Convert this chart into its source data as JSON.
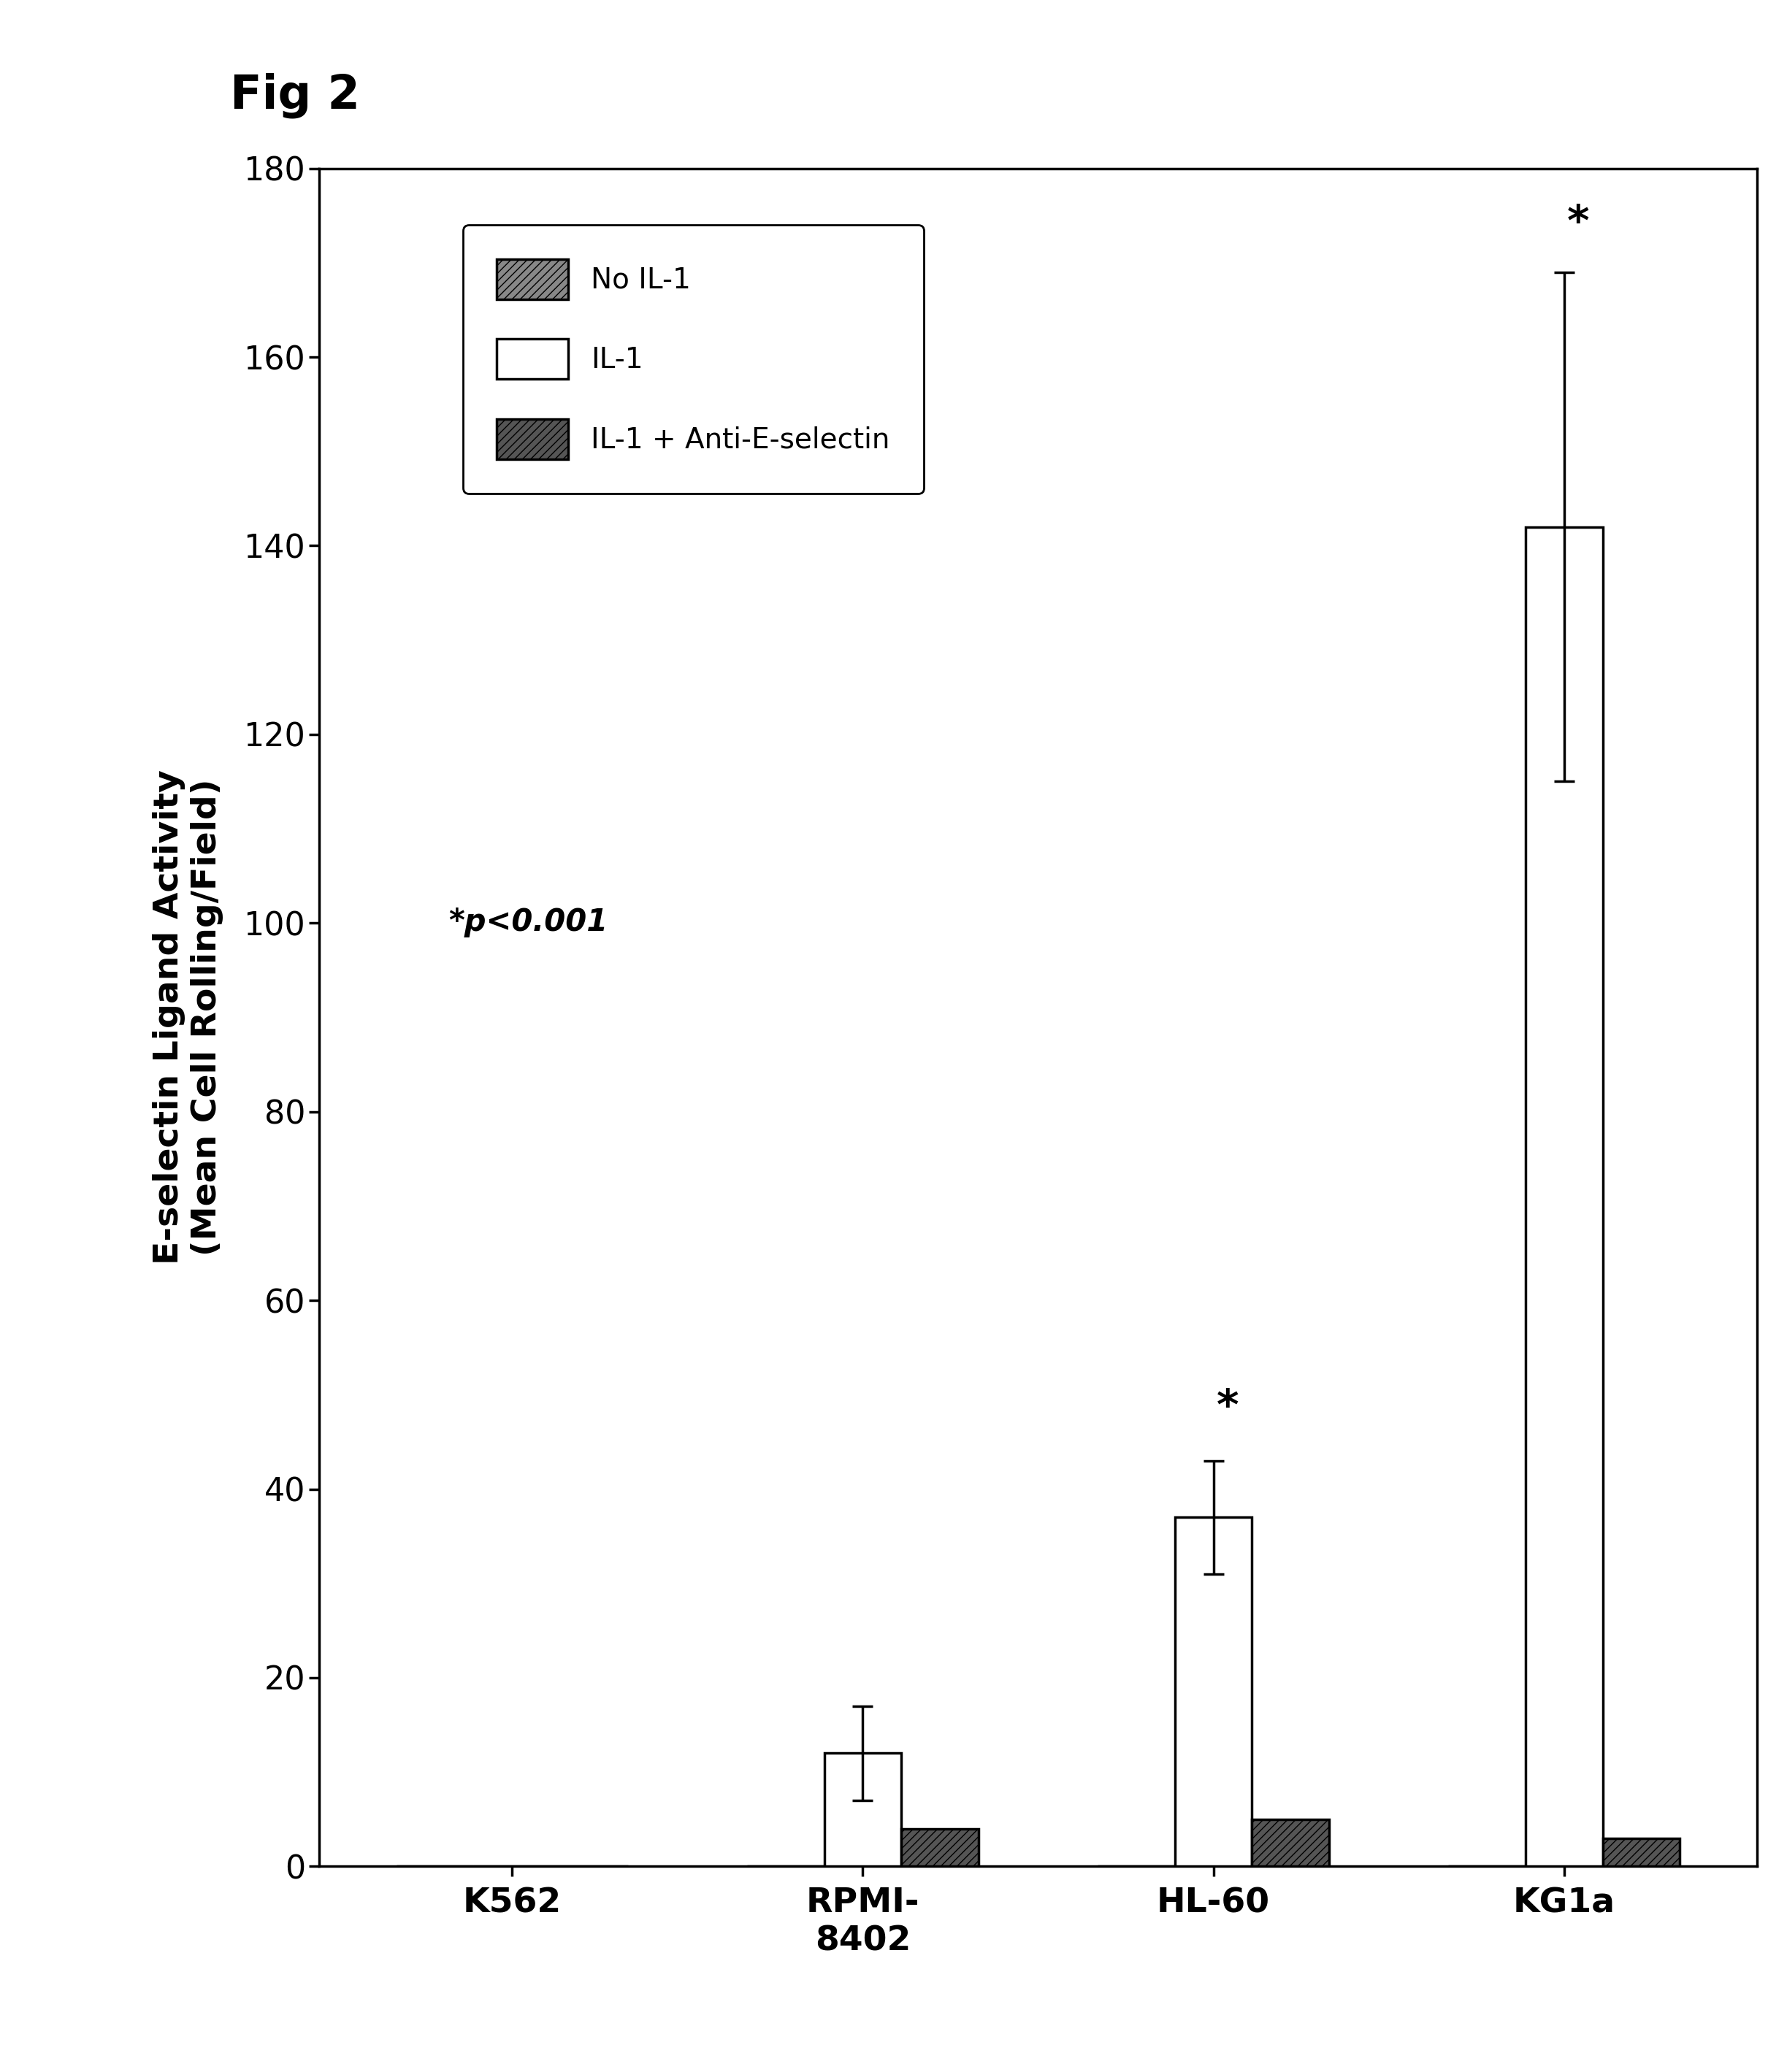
{
  "title": "Fig 2",
  "ylabel_line1": "E-selectin Ligand Activity",
  "ylabel_line2": "(Mean Cell Rolling/Field)",
  "categories": [
    "K562",
    "RPMI-\n8402",
    "HL-60",
    "KG1a"
  ],
  "series": {
    "No IL-1": {
      "values": [
        0,
        0,
        0,
        0
      ],
      "errors": [
        0,
        0,
        0,
        0
      ],
      "color": "#888888",
      "hatch": "///"
    },
    "IL-1": {
      "values": [
        0,
        12,
        37,
        142
      ],
      "errors": [
        0,
        5,
        6,
        27
      ],
      "color": "#ffffff",
      "hatch": ""
    },
    "IL-1 + Anti-E-selectin": {
      "values": [
        0,
        4,
        5,
        3
      ],
      "errors": [
        0,
        0,
        0,
        0
      ],
      "color": "#555555",
      "hatch": "///"
    }
  },
  "ylim": [
    0,
    180
  ],
  "yticks": [
    0,
    20,
    40,
    60,
    80,
    100,
    120,
    140,
    160,
    180
  ],
  "bar_width": 0.22,
  "annotation": "*p<0.001",
  "legend_order": [
    "No IL-1",
    "IL-1",
    "IL-1 + Anti-E-selectin"
  ],
  "background_color": "#ffffff",
  "axes_color": "#000000",
  "font_color": "#000000"
}
